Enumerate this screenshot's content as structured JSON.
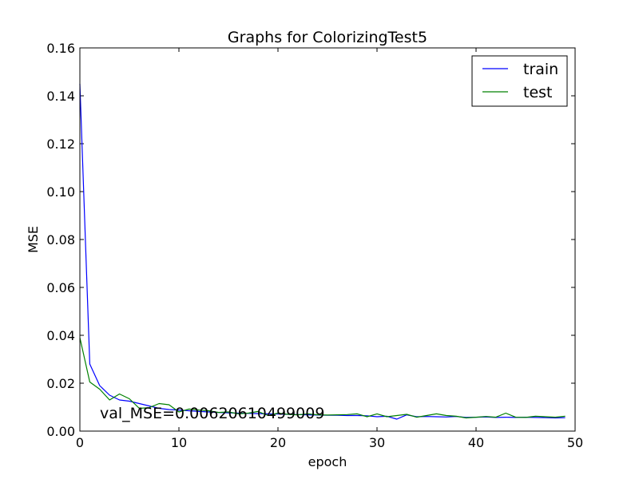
{
  "chart_data": {
    "type": "line",
    "title": "Graphs for ColorizingTest5",
    "xlabel": "epoch",
    "ylabel": "MSE",
    "xlim": [
      0,
      50
    ],
    "ylim": [
      0,
      0.16
    ],
    "xticks": [
      0,
      10,
      20,
      30,
      40,
      50
    ],
    "yticks": [
      0.0,
      0.02,
      0.04,
      0.06,
      0.08,
      0.1,
      0.12,
      0.14,
      0.16
    ],
    "xtick_labels": [
      "0",
      "10",
      "20",
      "30",
      "40",
      "50"
    ],
    "ytick_labels": [
      "0.00",
      "0.02",
      "0.04",
      "0.06",
      "0.08",
      "0.10",
      "0.12",
      "0.14",
      "0.16"
    ],
    "grid": false,
    "legend_position": "top-right",
    "annotation": "val_MSE=0.00620610499009",
    "x": [
      0,
      1,
      2,
      3,
      4,
      5,
      6,
      7,
      8,
      9,
      10,
      11,
      12,
      13,
      14,
      15,
      16,
      17,
      18,
      19,
      20,
      21,
      22,
      23,
      24,
      25,
      26,
      27,
      28,
      29,
      30,
      31,
      32,
      33,
      34,
      35,
      36,
      37,
      38,
      39,
      40,
      41,
      42,
      43,
      44,
      45,
      46,
      47,
      48,
      49
    ],
    "series": [
      {
        "name": "train",
        "color": "#0000ff",
        "values": [
          0.145,
          0.028,
          0.019,
          0.015,
          0.013,
          0.0125,
          0.0115,
          0.0105,
          0.0095,
          0.009,
          0.0088,
          0.0085,
          0.0082,
          0.008,
          0.0078,
          0.0076,
          0.0075,
          0.0074,
          0.0073,
          0.0072,
          0.0071,
          0.007,
          0.0069,
          0.0068,
          0.0067,
          0.0066,
          0.0066,
          0.0065,
          0.0065,
          0.0064,
          0.006,
          0.0062,
          0.005,
          0.0068,
          0.006,
          0.0061,
          0.006,
          0.0059,
          0.0061,
          0.0057,
          0.0058,
          0.0059,
          0.0057,
          0.0058,
          0.0057,
          0.0058,
          0.0057,
          0.0056,
          0.0055,
          0.0056
        ]
      },
      {
        "name": "test",
        "color": "#008000",
        "values": [
          0.039,
          0.0205,
          0.0175,
          0.013,
          0.0155,
          0.0135,
          0.0095,
          0.0098,
          0.0115,
          0.011,
          0.008,
          0.0092,
          0.0088,
          0.0085,
          0.0078,
          0.008,
          0.0072,
          0.0075,
          0.0082,
          0.0065,
          0.0075,
          0.007,
          0.0068,
          0.0072,
          0.0068,
          0.0067,
          0.0068,
          0.0069,
          0.0072,
          0.006,
          0.0072,
          0.006,
          0.0065,
          0.007,
          0.0058,
          0.0065,
          0.0072,
          0.0065,
          0.0062,
          0.0055,
          0.0058,
          0.0061,
          0.0058,
          0.0075,
          0.0058,
          0.0057,
          0.0062,
          0.006,
          0.0058,
          0.0062
        ]
      }
    ]
  }
}
